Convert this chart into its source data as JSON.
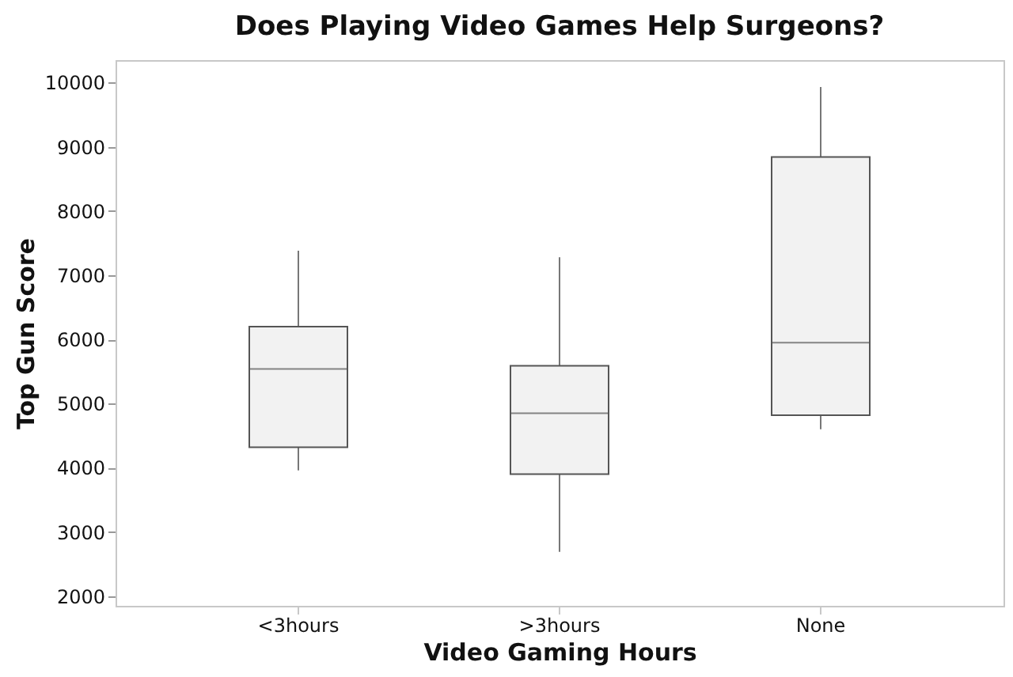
{
  "chart_data": {
    "type": "box",
    "title": "Does Playing Video Games Help Surgeons?",
    "xlabel": "Video Gaming Hours",
    "ylabel": "Top Gun Score",
    "categories": [
      "<3hours",
      ">3hours",
      "None"
    ],
    "boxes": [
      {
        "low": 3960,
        "q1": 4320,
        "median": 5540,
        "q3": 6200,
        "high": 7380
      },
      {
        "low": 2690,
        "q1": 3900,
        "median": 4850,
        "q3": 5590,
        "high": 7280
      },
      {
        "low": 4600,
        "q1": 4820,
        "median": 5950,
        "q3": 8840,
        "high": 9930
      }
    ],
    "color": "#f2f2f2",
    "ylim": [
      1850,
      10350
    ],
    "yticks": [
      2000,
      3000,
      4000,
      5000,
      6000,
      7000,
      8000,
      9000,
      10000
    ],
    "grid": false
  }
}
